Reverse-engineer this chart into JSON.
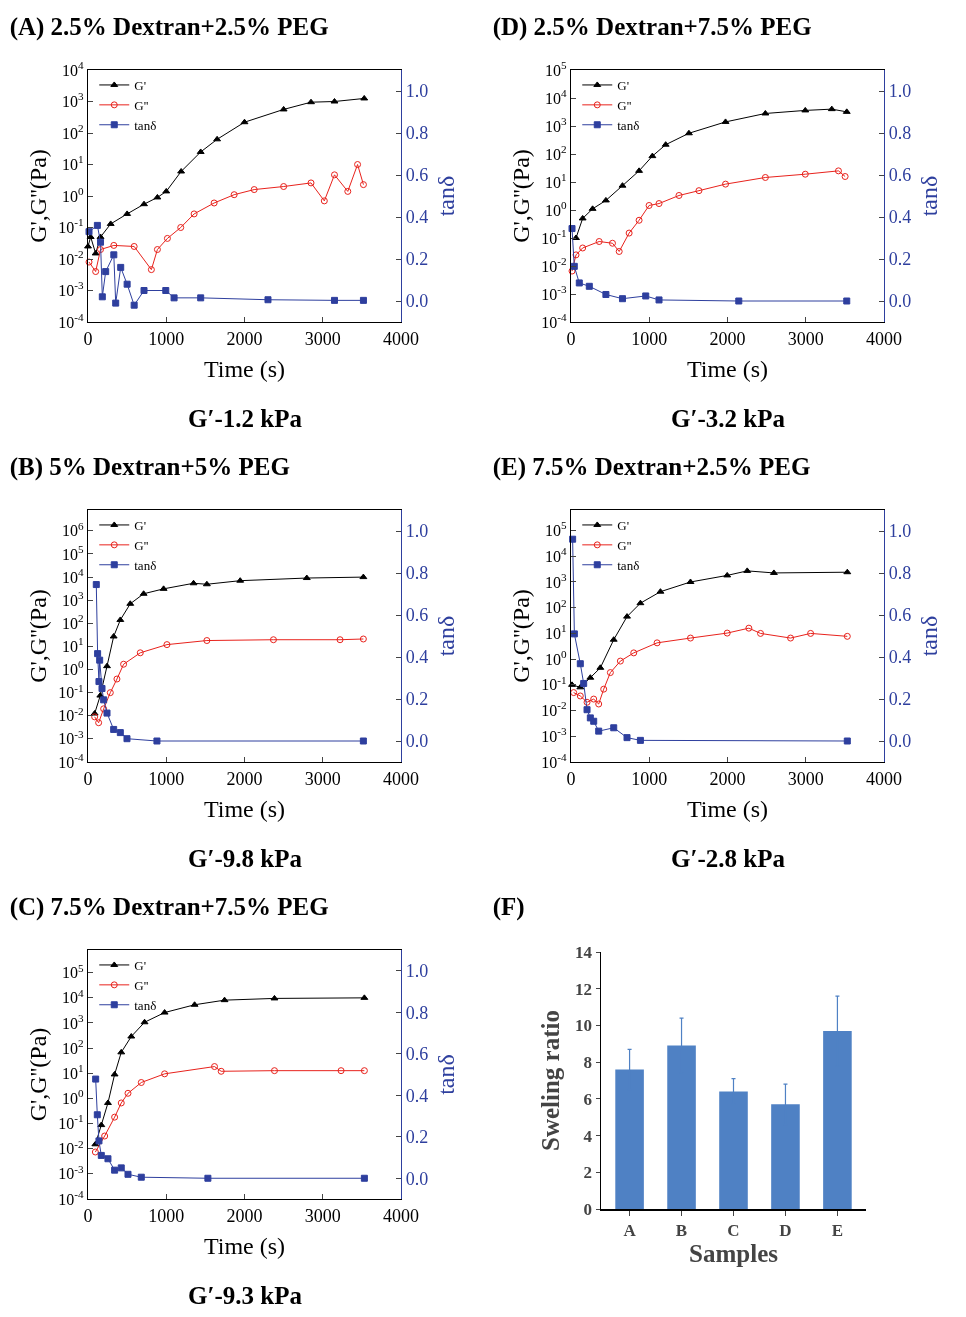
{
  "chart_data": [
    {
      "type": "line",
      "title": "(A) 2.5% Dextran+2.5% PEG",
      "xlabel": "Time (s)",
      "ylabel": "G',G''(Pa)",
      "y2label": "tanδ",
      "annotations": [
        "G′-1.2 kPa"
      ],
      "xlim": [
        0,
        4000
      ],
      "xticks": [
        0,
        1000,
        2000,
        3000,
        4000
      ],
      "ylim": [
        0.0001,
        10000
      ],
      "yticks": [
        {
          "value": 0.0001,
          "label": "10$^{-4}$"
        },
        {
          "value": 0.001,
          "label": "10$^{-3}$"
        },
        {
          "value": 0.01,
          "label": "10$^{-2}$"
        },
        {
          "value": 0.1,
          "label": "10$^{-1}$"
        },
        {
          "value": 1,
          "label": "10$^{0}$"
        },
        {
          "value": 10,
          "label": "10$^{1}$"
        },
        {
          "value": 100,
          "label": "10$^{2}$"
        },
        {
          "value": 1000,
          "label": "10$^{3}$"
        },
        {
          "value": 10000,
          "label": "10$^{4}$"
        }
      ],
      "y2lim": [
        -0.1,
        1.1
      ],
      "y2ticks": [
        {
          "value": 0,
          "label": "0.0"
        },
        {
          "value": 0.2,
          "label": "0.2"
        },
        {
          "value": 0.4,
          "label": "0.4"
        },
        {
          "value": 0.6,
          "label": "0.6"
        },
        {
          "value": 0.8,
          "label": "0.8"
        },
        {
          "value": 1,
          "label": "1.0"
        }
      ],
      "log": "y",
      "legend": "top left",
      "series": [
        {
          "name": "G'",
          "color": "#000000",
          "marker": "triangle",
          "x": [
            0,
            34,
            98,
            160,
            290,
            500,
            716,
            887,
            1000,
            1190,
            1440,
            1650,
            2000,
            2500,
            2850,
            3150,
            3530
          ],
          "values": [
            0.025,
            0.05,
            0.015,
            0.05,
            0.13,
            0.27,
            0.55,
            0.9,
            1.4,
            6,
            25,
            63,
            220,
            560,
            950,
            1000,
            1250
          ]
        },
        {
          "name": "G''",
          "color": "#e8221c",
          "marker": "circle",
          "x": [
            13,
            98,
            160,
            330,
            590,
            810,
            887,
            1015,
            1185,
            1356,
            1612,
            1868,
            2124,
            2500,
            2850,
            3020,
            3150,
            3320,
            3445,
            3520
          ],
          "values": [
            0.008,
            0.004,
            0.02,
            0.027,
            0.025,
            0.0046,
            0.02,
            0.045,
            0.1,
            0.27,
            0.6,
            1.1,
            1.6,
            2,
            2.6,
            0.7,
            4.7,
            1.4,
            10,
            2.3
          ]
        },
        {
          "name": "tanδ",
          "color": "#2e3f9e",
          "marker": "square",
          "axis": "y2",
          "x": [
            13,
            120,
            160,
            183,
            226,
            330,
            354,
            418,
            500,
            590,
            716,
            994,
            1100,
            1440,
            2300,
            3150,
            3520
          ],
          "values": [
            0.33,
            0.36,
            0.28,
            0.02,
            0.14,
            0.22,
            -0.01,
            0.16,
            0.08,
            -0.02,
            0.05,
            0.05,
            0.015,
            0.015,
            0.006,
            0.003,
            0.003
          ]
        }
      ]
    },
    {
      "type": "line",
      "title": "(D) 2.5% Dextran+7.5% PEG",
      "xlabel": "Time (s)",
      "ylabel": "G',G''(Pa)",
      "y2label": "tanδ",
      "annotations": [
        "G′-3.2 kPa"
      ],
      "xlim": [
        0,
        4000
      ],
      "xticks": [
        0,
        1000,
        2000,
        3000,
        4000
      ],
      "ylim": [
        0.0001,
        100000
      ],
      "yticks": [
        {
          "value": 0.0001,
          "label": "10$^{-4}$"
        },
        {
          "value": 0.001,
          "label": "10$^{-3}$"
        },
        {
          "value": 0.01,
          "label": "10$^{-2}$"
        },
        {
          "value": 0.1,
          "label": "10$^{-1}$"
        },
        {
          "value": 1,
          "label": "10$^{0}$"
        },
        {
          "value": 10,
          "label": "10$^{1}$"
        },
        {
          "value": 100,
          "label": "10$^{2}$"
        },
        {
          "value": 1000,
          "label": "10$^{3}$"
        },
        {
          "value": 10000,
          "label": "10$^{4}$"
        },
        {
          "value": 100000,
          "label": "10$^{5}$"
        }
      ],
      "y2lim": [
        -0.1,
        1.1
      ],
      "y2ticks": [
        {
          "value": 0,
          "label": "0.0"
        },
        {
          "value": 0.2,
          "label": "0.2"
        },
        {
          "value": 0.4,
          "label": "0.4"
        },
        {
          "value": 0.6,
          "label": "0.6"
        },
        {
          "value": 0.8,
          "label": "0.8"
        },
        {
          "value": 1,
          "label": "1.0"
        }
      ],
      "log": "y",
      "legend": "top left",
      "series": [
        {
          "name": "G'",
          "color": "#000000",
          "marker": "triangle",
          "x": [
            64,
            149,
            276,
            446,
            658,
            870,
            1040,
            1210,
            1507,
            1975,
            2484,
            2994,
            3333,
            3524
          ],
          "values": [
            0.1,
            0.5,
            1.1,
            2.2,
            7.4,
            25,
            84,
            215,
            550,
            1400,
            2800,
            3600,
            4000,
            3200
          ]
        },
        {
          "name": "G''",
          "color": "#e8221c",
          "marker": "circle",
          "x": [
            13,
            64,
            149,
            360,
            530,
            616,
            743,
            870,
            998,
            1125,
            1380,
            1635,
            1975,
            2484,
            2994,
            3418,
            3503
          ],
          "values": [
            0.0066,
            0.025,
            0.044,
            0.075,
            0.065,
            0.033,
            0.15,
            0.43,
            1.45,
            1.7,
            3.3,
            4.9,
            8.4,
            14.5,
            19,
            25,
            15.7
          ]
        },
        {
          "name": "tanδ",
          "color": "#2e3f9e",
          "marker": "square",
          "axis": "y2",
          "x": [
            13,
            42,
            106,
            234,
            446,
            658,
            955,
            1125,
            2144,
            3524
          ],
          "values": [
            0.345,
            0.165,
            0.086,
            0.07,
            0.031,
            0.011,
            0.024,
            0.005,
            0,
            0
          ]
        }
      ]
    },
    {
      "type": "line",
      "title": "(B) 5% Dextran+5% PEG",
      "xlabel": "Time (s)",
      "ylabel": "G',G''(Pa)",
      "y2label": "tanδ",
      "annotations": [
        "G′-9.8 kPa"
      ],
      "xlim": [
        0,
        4000
      ],
      "xticks": [
        0,
        1000,
        2000,
        3000,
        4000
      ],
      "ylim": [
        0.0001,
        8000000
      ],
      "yticks": [
        {
          "value": 0.0001,
          "label": "10$^{-4}$"
        },
        {
          "value": 0.001,
          "label": "10$^{-3}$"
        },
        {
          "value": 0.01,
          "label": "10$^{-2}$"
        },
        {
          "value": 0.1,
          "label": "10$^{-1}$"
        },
        {
          "value": 1,
          "label": "10$^{0}$"
        },
        {
          "value": 10,
          "label": "10$^{1}$"
        },
        {
          "value": 100,
          "label": "10$^{2}$"
        },
        {
          "value": 1000,
          "label": "10$^{3}$"
        },
        {
          "value": 10000,
          "label": "10$^{4}$"
        },
        {
          "value": 100000,
          "label": "10$^{5}$"
        },
        {
          "value": 1000000,
          "label": "10$^{6}$"
        }
      ],
      "y2lim": [
        -0.1,
        1.1
      ],
      "y2ticks": [
        {
          "value": 0,
          "label": "0.0"
        },
        {
          "value": 0.2,
          "label": "0.2"
        },
        {
          "value": 0.4,
          "label": "0.4"
        },
        {
          "value": 0.6,
          "label": "0.6"
        },
        {
          "value": 0.8,
          "label": "0.8"
        },
        {
          "value": 1,
          "label": "1.0"
        }
      ],
      "log": "y",
      "legend": "top left",
      "series": [
        {
          "name": "G'",
          "color": "#000000",
          "marker": "triangle",
          "x": [
            85,
            157,
            243,
            328,
            413,
            540,
            711,
            966,
            1349,
            1519,
            1945,
            2796,
            3519
          ],
          "values": [
            0.0125,
            0.075,
            1.4,
            27,
            140,
            700,
            1900,
            3100,
            5400,
            4900,
            7000,
            9100,
            10000
          ]
        },
        {
          "name": "G''",
          "color": "#e8221c",
          "marker": "circle",
          "x": [
            85,
            136,
            200,
            285,
            370,
            455,
            668,
            1009,
            1519,
            2370,
            3221,
            3519
          ],
          "values": [
            0.009,
            0.005,
            0.02,
            0.1,
            0.39,
            1.7,
            5.3,
            12,
            18,
            19.5,
            19.5,
            21
          ]
        },
        {
          "name": "tanδ",
          "color": "#2e3f9e",
          "marker": "square",
          "axis": "y2",
          "x": [
            106,
            123,
            140,
            149,
            179,
            200,
            243,
            328,
            413,
            498,
            881,
            3519
          ],
          "values": [
            0.745,
            0.416,
            0.283,
            0.385,
            0.25,
            0.196,
            0.133,
            0.055,
            0.04,
            0.011,
            0,
            0
          ]
        }
      ]
    },
    {
      "type": "line",
      "title": "(E) 7.5% Dextran+2.5% PEG",
      "xlabel": "Time (s)",
      "ylabel": "G',G''(Pa)",
      "y2label": "tanδ",
      "annotations": [
        "G′-2.8 kPa"
      ],
      "xlim": [
        0,
        4000
      ],
      "xticks": [
        0,
        1000,
        2000,
        3000,
        4000
      ],
      "ylim": [
        0.0001,
        630000
      ],
      "yticks": [
        {
          "value": 0.0001,
          "label": "10$^{-4}$"
        },
        {
          "value": 0.001,
          "label": "10$^{-3}$"
        },
        {
          "value": 0.01,
          "label": "10$^{-2}$"
        },
        {
          "value": 0.1,
          "label": "10$^{-1}$"
        },
        {
          "value": 1,
          "label": "10$^{0}$"
        },
        {
          "value": 10,
          "label": "10$^{1}$"
        },
        {
          "value": 100,
          "label": "10$^{2}$"
        },
        {
          "value": 1000,
          "label": "10$^{3}$"
        },
        {
          "value": 10000,
          "label": "10$^{4}$"
        },
        {
          "value": 100000,
          "label": "10$^{5}$"
        }
      ],
      "y2lim": [
        -0.1,
        1.1
      ],
      "y2ticks": [
        {
          "value": 0,
          "label": "0.0"
        },
        {
          "value": 0.2,
          "label": "0.2"
        },
        {
          "value": 0.4,
          "label": "0.4"
        },
        {
          "value": 0.6,
          "label": "0.6"
        },
        {
          "value": 0.8,
          "label": "0.8"
        },
        {
          "value": 1,
          "label": "1.0"
        }
      ],
      "log": "y",
      "legend": "top left",
      "series": [
        {
          "name": "G'",
          "color": "#000000",
          "marker": "triangle",
          "x": [
            13,
            119,
            247,
            375,
            546,
            716,
            887,
            1143,
            1527,
            1996,
            2252,
            2593,
            3531
          ],
          "values": [
            0.1,
            0.08,
            0.19,
            0.46,
            5.7,
            45,
            150,
            420,
            1000,
            1800,
            2700,
            2250,
            2400
          ]
        },
        {
          "name": "G''",
          "color": "#e8221c",
          "marker": "circle",
          "x": [
            34,
            119,
            205,
            290,
            354,
            418,
            503,
            631,
            802,
            1100,
            1527,
            1996,
            2273,
            2422,
            2806,
            3062,
            3531
          ],
          "values": [
            0.05,
            0.037,
            0.021,
            0.028,
            0.018,
            0.068,
            0.3,
            0.84,
            1.75,
            4.3,
            6.6,
            10.3,
            16,
            10,
            6.6,
            10,
            7.7
          ]
        },
        {
          "name": "tanδ",
          "color": "#2e3f9e",
          "marker": "square",
          "axis": "y2",
          "x": [
            21,
            43,
            119,
            162,
            205,
            247,
            290,
            354,
            546,
            716,
            887,
            3531
          ],
          "values": [
            0.961,
            0.51,
            0.368,
            0.274,
            0.149,
            0.11,
            0.094,
            0.047,
            0.063,
            0.016,
            0.003,
            0
          ]
        }
      ]
    },
    {
      "type": "line",
      "title": "(C) 7.5% Dextran+7.5% PEG",
      "xlabel": "Time (s)",
      "ylabel": "G',G''(Pa)",
      "y2label": "tanδ",
      "annotations": [
        "G′-9.3 kPa"
      ],
      "xlim": [
        0,
        4000
      ],
      "xticks": [
        0,
        1000,
        2000,
        3000,
        4000
      ],
      "ylim": [
        0.0001,
        800000
      ],
      "yticks": [
        {
          "value": 0.0001,
          "label": "10$^{-4}$"
        },
        {
          "value": 0.001,
          "label": "10$^{-3}$"
        },
        {
          "value": 0.01,
          "label": "10$^{-2}$"
        },
        {
          "value": 0.1,
          "label": "10$^{-1}$"
        },
        {
          "value": 1,
          "label": "10$^{0}$"
        },
        {
          "value": 10,
          "label": "10$^{1}$"
        },
        {
          "value": 100,
          "label": "10$^{2}$"
        },
        {
          "value": 1000,
          "label": "10$^{3}$"
        },
        {
          "value": 10000,
          "label": "10$^{4}$"
        },
        {
          "value": 100000,
          "label": "10$^{5}$"
        }
      ],
      "y2lim": [
        -0.1,
        1.1
      ],
      "y2ticks": [
        {
          "value": 0,
          "label": "0.0"
        },
        {
          "value": 0.2,
          "label": "0.2"
        },
        {
          "value": 0.4,
          "label": "0.4"
        },
        {
          "value": 0.6,
          "label": "0.6"
        },
        {
          "value": 0.8,
          "label": "0.8"
        },
        {
          "value": 1,
          "label": "1.0"
        }
      ],
      "log": "y",
      "legend": "top left",
      "series": [
        {
          "name": "G'",
          "color": "#000000",
          "marker": "triangle",
          "x": [
            94,
            170,
            255,
            340,
            425,
            553,
            723,
            979,
            1362,
            1745,
            2383,
            3532
          ],
          "values": [
            0.015,
            0.087,
            0.66,
            9,
            68,
            290,
            1070,
            2600,
            5300,
            8100,
            9500,
            10000
          ]
        },
        {
          "name": "G''",
          "color": "#e8221c",
          "marker": "circle",
          "x": [
            94,
            213,
            340,
            425,
            511,
            681,
            979,
            1617,
            1702,
            2383,
            3234,
            3532
          ],
          "values": [
            0.0074,
            0.032,
            0.18,
            0.66,
            1.6,
            4.3,
            9.5,
            18.5,
            12,
            12.7,
            12.7,
            12.7
          ]
        },
        {
          "name": "tanδ",
          "color": "#2e3f9e",
          "marker": "square",
          "axis": "y2",
          "x": [
            98,
            119,
            140,
            170,
            255,
            340,
            425,
            511,
            681,
            1532,
            3532
          ],
          "values": [
            0.478,
            0.306,
            0.18,
            0.11,
            0.094,
            0.039,
            0.05,
            0.019,
            0.005,
            0,
            0
          ]
        }
      ]
    },
    {
      "type": "bar",
      "title": "(F)",
      "xlabel": "Samples",
      "ylabel": "Sweling ratio",
      "categories": [
        "A",
        "B",
        "C",
        "D",
        "E"
      ],
      "values": [
        7.6,
        8.9,
        6.4,
        5.7,
        9.7
      ],
      "errors": [
        1.1,
        1.5,
        0.7,
        1.1,
        1.9
      ],
      "color": "#4f81c4",
      "ylim": [
        0,
        14
      ],
      "yticks": [
        0,
        2,
        4,
        6,
        8,
        10,
        12,
        14
      ]
    }
  ]
}
